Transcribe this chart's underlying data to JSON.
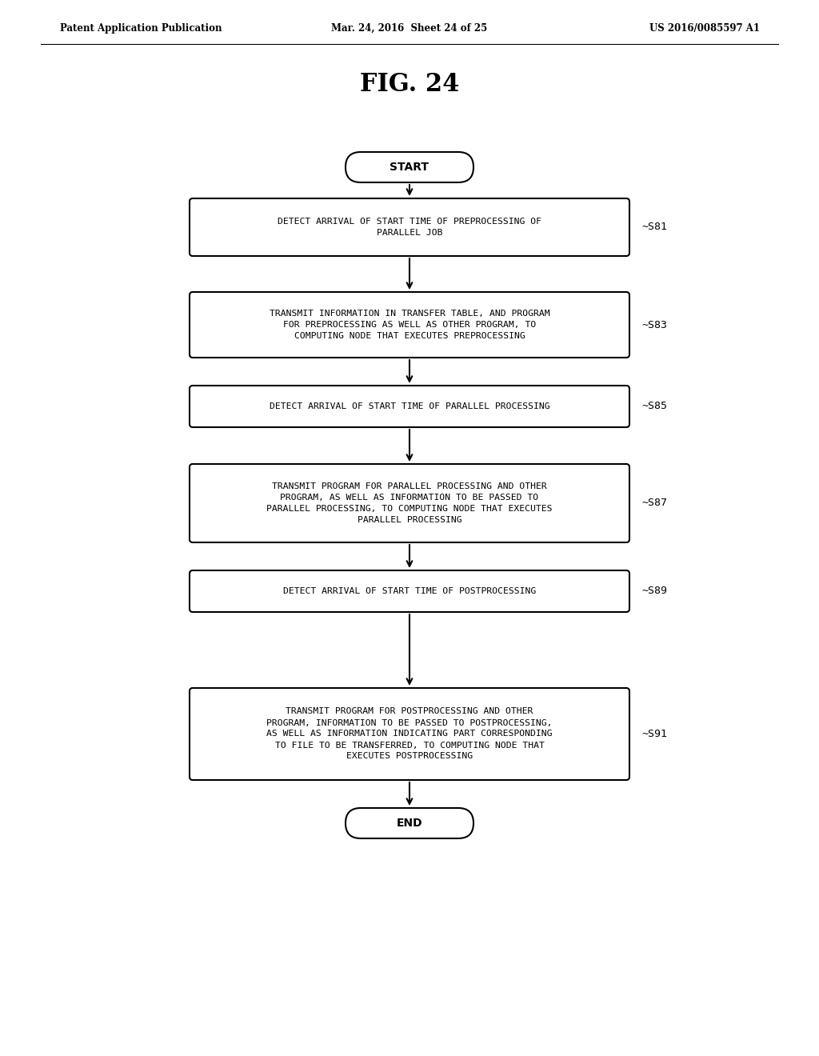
{
  "bg_color": "#ffffff",
  "header_left": "Patent Application Publication",
  "header_mid": "Mar. 24, 2016  Sheet 24 of 25",
  "header_right": "US 2016/0085597 A1",
  "fig_title": "FIG. 24",
  "start_label": "START",
  "end_label": "END",
  "boxes": [
    {
      "id": "S81",
      "label": "DETECT ARRIVAL OF START TIME OF PREPROCESSING OF\nPARALLEL JOB",
      "step": "S81"
    },
    {
      "id": "S83",
      "label": "TRANSMIT INFORMATION IN TRANSFER TABLE, AND PROGRAM\nFOR PREPROCESSING AS WELL AS OTHER PROGRAM, TO\nCOMPUTING NODE THAT EXECUTES PREPROCESSING",
      "step": "S83"
    },
    {
      "id": "S85",
      "label": "DETECT ARRIVAL OF START TIME OF PARALLEL PROCESSING",
      "step": "S85"
    },
    {
      "id": "S87",
      "label": "TRANSMIT PROGRAM FOR PARALLEL PROCESSING AND OTHER\nPROGRAM, AS WELL AS INFORMATION TO BE PASSED TO\nPARALLEL PROCESSING, TO COMPUTING NODE THAT EXECUTES\nPARALLEL PROCESSING",
      "step": "S87"
    },
    {
      "id": "S89",
      "label": "DETECT ARRIVAL OF START TIME OF POSTPROCESSING",
      "step": "S89"
    },
    {
      "id": "S91",
      "label": "TRANSMIT PROGRAM FOR POSTPROCESSING AND OTHER\nPROGRAM, INFORMATION TO BE PASSED TO POSTPROCESSING,\nAS WELL AS INFORMATION INDICATING PART CORRESPONDING\nTO FILE TO BE TRANSFERRED, TO COMPUTING NODE THAT\nEXECUTES POSTPROCESSING",
      "step": "S91"
    }
  ]
}
